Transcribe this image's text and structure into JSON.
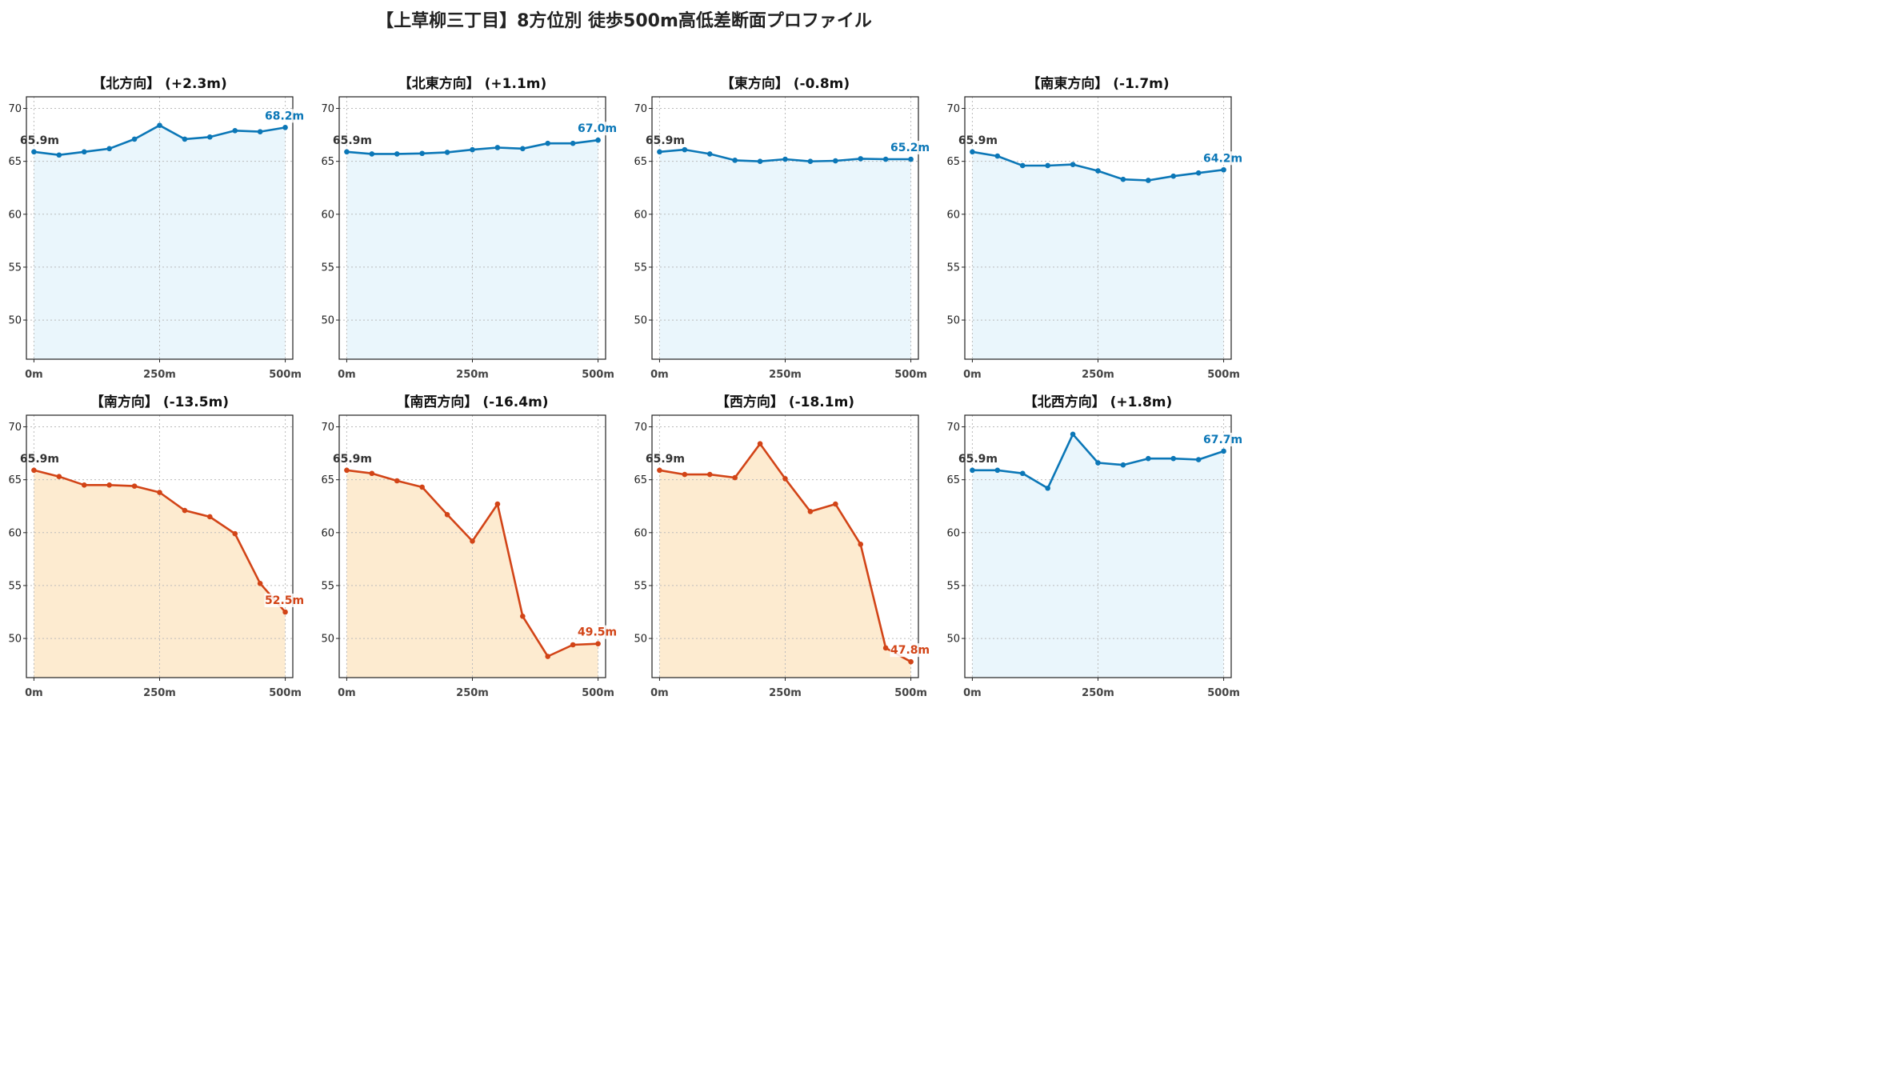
{
  "title": "【上草柳三丁目】8方位別 徒歩500m高低差断面プロファイル",
  "colors": {
    "up": "#0b77b7",
    "up_fill": "#eaf6fc",
    "down": "#d24417",
    "down_fill": "#fdebd0",
    "start_label": "#333333"
  },
  "chart_data": [
    {
      "type": "area",
      "title": "【北方向】 (+2.3m)",
      "trend": "up",
      "x": [
        0,
        50,
        100,
        150,
        200,
        250,
        300,
        350,
        400,
        450,
        500
      ],
      "values": [
        65.9,
        65.6,
        65.9,
        66.2,
        67.1,
        68.4,
        67.1,
        67.3,
        67.9,
        67.8,
        68.2
      ],
      "start_label": "65.9m",
      "end_label": "68.2m"
    },
    {
      "type": "area",
      "title": "【北東方向】 (+1.1m)",
      "trend": "up",
      "x": [
        0,
        50,
        100,
        150,
        200,
        250,
        300,
        350,
        400,
        450,
        500
      ],
      "values": [
        65.9,
        65.7,
        65.7,
        65.75,
        65.85,
        66.1,
        66.3,
        66.2,
        66.7,
        66.7,
        67.0
      ],
      "start_label": "65.9m",
      "end_label": "67.0m"
    },
    {
      "type": "area",
      "title": "【東方向】 (-0.8m)",
      "trend": "up",
      "x": [
        0,
        50,
        100,
        150,
        200,
        250,
        300,
        350,
        400,
        450,
        500
      ],
      "values": [
        65.9,
        66.1,
        65.7,
        65.1,
        65.0,
        65.2,
        65.0,
        65.05,
        65.25,
        65.2,
        65.2
      ],
      "start_label": "65.9m",
      "end_label": "65.2m"
    },
    {
      "type": "area",
      "title": "【南東方向】 (-1.7m)",
      "trend": "up",
      "x": [
        0,
        50,
        100,
        150,
        200,
        250,
        300,
        350,
        400,
        450,
        500
      ],
      "values": [
        65.9,
        65.5,
        64.6,
        64.6,
        64.7,
        64.1,
        63.3,
        63.2,
        63.6,
        63.9,
        64.2
      ],
      "start_label": "65.9m",
      "end_label": "64.2m"
    },
    {
      "type": "area",
      "title": "【南方向】 (-13.5m)",
      "trend": "down",
      "x": [
        0,
        50,
        100,
        150,
        200,
        250,
        300,
        350,
        400,
        450,
        500
      ],
      "values": [
        65.9,
        65.3,
        64.5,
        64.5,
        64.4,
        63.8,
        62.1,
        61.5,
        59.9,
        55.2,
        52.5
      ],
      "start_label": "65.9m",
      "end_label": "52.5m"
    },
    {
      "type": "area",
      "title": "【南西方向】 (-16.4m)",
      "trend": "down",
      "x": [
        0,
        50,
        100,
        150,
        200,
        250,
        300,
        350,
        400,
        450,
        500
      ],
      "values": [
        65.9,
        65.6,
        64.9,
        64.3,
        61.7,
        59.2,
        62.7,
        52.1,
        48.3,
        49.4,
        49.5
      ],
      "start_label": "65.9m",
      "end_label": "49.5m"
    },
    {
      "type": "area",
      "title": "【西方向】 (-18.1m)",
      "trend": "down",
      "x": [
        0,
        50,
        100,
        150,
        200,
        250,
        300,
        350,
        400,
        450,
        500
      ],
      "values": [
        65.9,
        65.5,
        65.5,
        65.2,
        68.4,
        65.1,
        62.0,
        62.7,
        58.9,
        49.1,
        47.8
      ],
      "start_label": "65.9m",
      "end_label": "47.8m"
    },
    {
      "type": "area",
      "title": "【北西方向】 (+1.8m)",
      "trend": "up",
      "x": [
        0,
        50,
        100,
        150,
        200,
        250,
        300,
        350,
        400,
        450,
        500
      ],
      "values": [
        65.9,
        65.9,
        65.6,
        64.2,
        69.3,
        66.6,
        66.4,
        67.0,
        67.0,
        66.9,
        67.7
      ],
      "start_label": "65.9m",
      "end_label": "67.7m"
    }
  ],
  "axes": {
    "xlim": [
      -15,
      515
    ],
    "ylim": [
      46.3,
      71.1
    ],
    "yticks": [
      "50",
      "55",
      "60",
      "65",
      "70"
    ],
    "xticks": [
      "0m",
      "250m",
      "500m"
    ],
    "xtick_values": [
      0,
      250,
      500
    ],
    "ytick_values": [
      50,
      55,
      60,
      65,
      70
    ],
    "grid": true
  }
}
